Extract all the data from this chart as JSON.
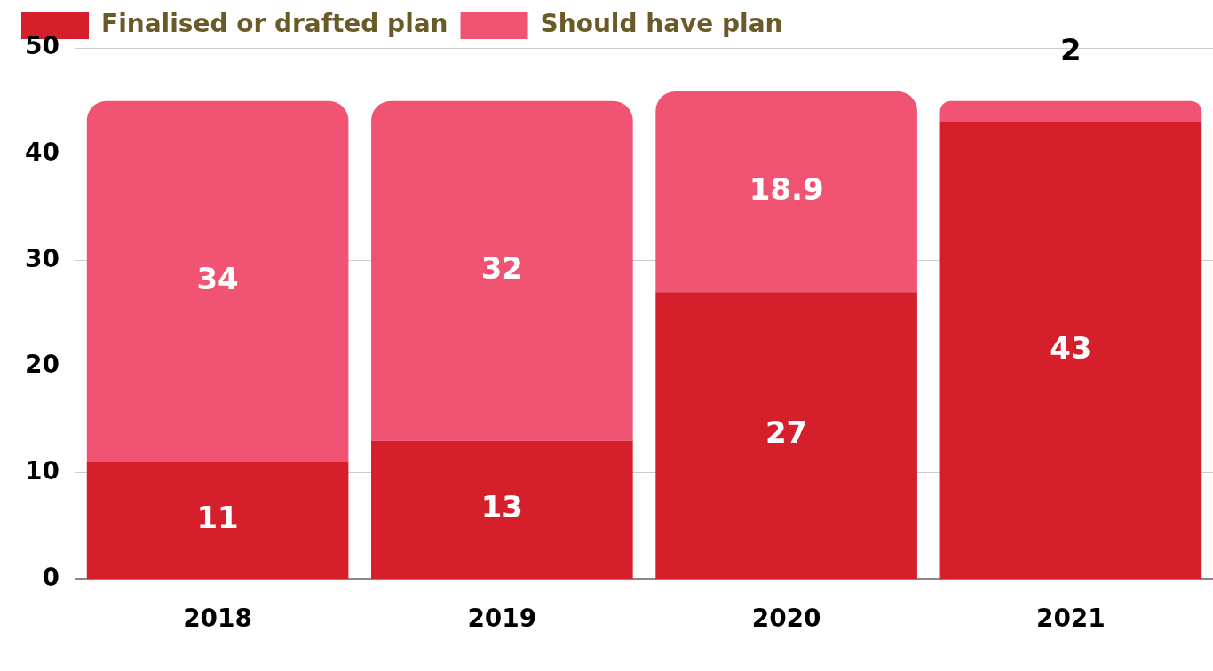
{
  "chart_data": {
    "type": "bar",
    "stacked": true,
    "categories": [
      "2018",
      "2019",
      "2020",
      "2021"
    ],
    "series": [
      {
        "name": "Finalised or drafted plan",
        "color": "#d5202b",
        "values": [
          11,
          13,
          27,
          43
        ]
      },
      {
        "name": "Should have plan",
        "color": "#f05472",
        "values": [
          34,
          32,
          18.9,
          2
        ]
      }
    ],
    "ylim": [
      0,
      50
    ],
    "yticks": [
      0,
      10,
      20,
      30,
      40,
      50
    ],
    "grid": "y",
    "legend": "top left",
    "data_labels": true
  }
}
